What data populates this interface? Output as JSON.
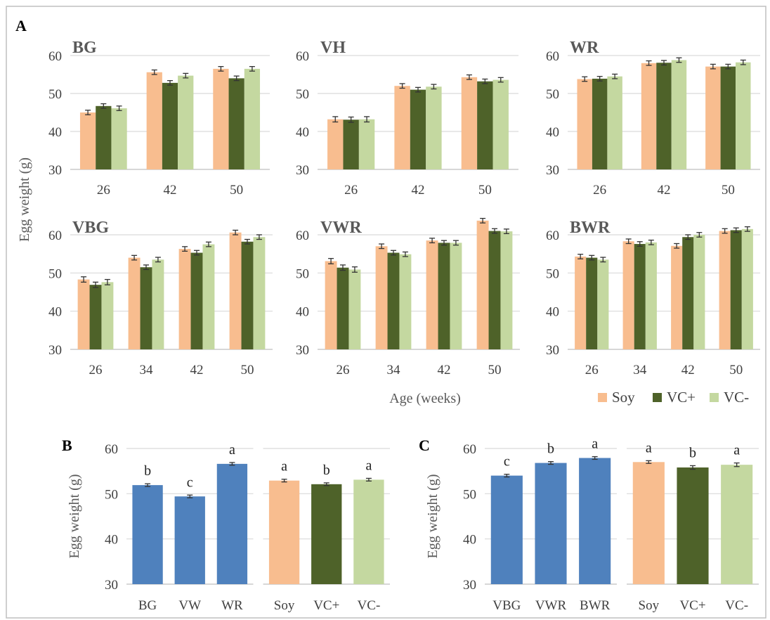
{
  "figure": {
    "panel_labels": [
      "A",
      "B",
      "C"
    ],
    "colors": {
      "Soy": "#F8BD8F",
      "VC+": "#4E6229",
      "VC-": "#C4D8A0",
      "strain": "#4F81BD",
      "grid": "#D9D9D9",
      "border": "#BFBFBF"
    },
    "panel_a": {
      "ylabel": "Egg weight (g)",
      "xlabel": "Age (weeks)",
      "legend": [
        "Soy",
        "VC+",
        "VC-"
      ]
    }
  },
  "chart_data": [
    {
      "type": "bar",
      "panel": "A",
      "title": "BG",
      "categories": [
        "26",
        "42",
        "50"
      ],
      "ylim": [
        30,
        60
      ],
      "yticks": [
        30,
        40,
        50,
        60
      ],
      "series": [
        {
          "name": "Soy",
          "values": [
            45.0,
            55.6,
            56.5
          ],
          "errors": [
            0.6,
            0.6,
            0.6
          ]
        },
        {
          "name": "VC+",
          "values": [
            46.7,
            52.8,
            54.0
          ],
          "errors": [
            0.6,
            0.6,
            0.6
          ]
        },
        {
          "name": "VC-",
          "values": [
            46.1,
            54.7,
            56.5
          ],
          "errors": [
            0.6,
            0.6,
            0.6
          ]
        }
      ]
    },
    {
      "type": "bar",
      "panel": "A",
      "title": "VH",
      "categories": [
        "26",
        "42",
        "50"
      ],
      "ylim": [
        30,
        60
      ],
      "yticks": [
        30,
        40,
        50,
        60
      ],
      "series": [
        {
          "name": "Soy",
          "values": [
            43.2,
            52.0,
            54.3
          ],
          "errors": [
            0.7,
            0.6,
            0.6
          ]
        },
        {
          "name": "VC+",
          "values": [
            43.1,
            51.0,
            53.2
          ],
          "errors": [
            0.7,
            0.6,
            0.6
          ]
        },
        {
          "name": "VC-",
          "values": [
            43.2,
            51.8,
            53.6
          ],
          "errors": [
            0.7,
            0.6,
            0.6
          ]
        }
      ]
    },
    {
      "type": "bar",
      "panel": "A",
      "title": "WR",
      "categories": [
        "26",
        "42",
        "50"
      ],
      "ylim": [
        30,
        60
      ],
      "yticks": [
        30,
        40,
        50,
        60
      ],
      "series": [
        {
          "name": "Soy",
          "values": [
            53.8,
            58.0,
            57.1
          ],
          "errors": [
            0.6,
            0.6,
            0.6
          ]
        },
        {
          "name": "VC+",
          "values": [
            53.9,
            58.1,
            57.1
          ],
          "errors": [
            0.6,
            0.6,
            0.6
          ]
        },
        {
          "name": "VC-",
          "values": [
            54.5,
            58.8,
            58.2
          ],
          "errors": [
            0.6,
            0.6,
            0.6
          ]
        }
      ]
    },
    {
      "type": "bar",
      "panel": "A",
      "title": "VBG",
      "categories": [
        "26",
        "34",
        "42",
        "50"
      ],
      "ylim": [
        30,
        60
      ],
      "yticks": [
        30,
        40,
        50,
        60
      ],
      "series": [
        {
          "name": "Soy",
          "values": [
            48.3,
            54.0,
            56.3,
            60.6
          ],
          "errors": [
            0.7,
            0.6,
            0.6,
            0.6
          ]
        },
        {
          "name": "VC+",
          "values": [
            46.9,
            51.5,
            55.3,
            58.2
          ],
          "errors": [
            0.7,
            0.6,
            0.6,
            0.6
          ]
        },
        {
          "name": "VC-",
          "values": [
            47.6,
            53.5,
            57.5,
            59.4
          ],
          "errors": [
            0.7,
            0.6,
            0.6,
            0.6
          ]
        }
      ]
    },
    {
      "type": "bar",
      "panel": "A",
      "title": "VWR",
      "categories": [
        "26",
        "34",
        "42",
        "50"
      ],
      "ylim": [
        30,
        60
      ],
      "yticks": [
        30,
        40,
        50,
        60
      ],
      "series": [
        {
          "name": "Soy",
          "values": [
            53.1,
            57.0,
            58.5,
            63.7
          ],
          "errors": [
            0.7,
            0.6,
            0.6,
            0.6
          ]
        },
        {
          "name": "VC+",
          "values": [
            51.4,
            55.3,
            57.9,
            61.0
          ],
          "errors": [
            0.7,
            0.6,
            0.6,
            0.6
          ]
        },
        {
          "name": "VC-",
          "values": [
            50.9,
            54.9,
            57.9,
            60.9
          ],
          "errors": [
            0.7,
            0.6,
            0.6,
            0.6
          ]
        }
      ]
    },
    {
      "type": "bar",
      "panel": "A",
      "title": "BWR",
      "categories": [
        "26",
        "34",
        "42",
        "50"
      ],
      "ylim": [
        30,
        60
      ],
      "yticks": [
        30,
        40,
        50,
        60
      ],
      "series": [
        {
          "name": "Soy",
          "values": [
            54.3,
            58.3,
            57.1,
            61.0
          ],
          "errors": [
            0.6,
            0.6,
            0.6,
            0.6
          ]
        },
        {
          "name": "VC+",
          "values": [
            54.0,
            57.6,
            59.4,
            61.2
          ],
          "errors": [
            0.6,
            0.6,
            0.6,
            0.6
          ]
        },
        {
          "name": "VC-",
          "values": [
            53.5,
            58.0,
            60.0,
            61.5
          ],
          "errors": [
            0.6,
            0.6,
            0.6,
            0.6
          ]
        }
      ]
    },
    {
      "type": "bar",
      "panel": "B",
      "ylabel": "Egg weight (g)",
      "categories": [
        "BG",
        "VW",
        "WR",
        "Soy",
        "VC+",
        "VC-"
      ],
      "values": [
        51.9,
        49.4,
        56.6,
        52.9,
        52.1,
        53.1
      ],
      "errors": [
        0.3,
        0.3,
        0.3,
        0.3,
        0.3,
        0.3
      ],
      "letters": [
        "b",
        "c",
        "a",
        "a",
        "b",
        "a"
      ],
      "ylim": [
        30,
        60
      ],
      "yticks": [
        30,
        40,
        50,
        60
      ]
    },
    {
      "type": "bar",
      "panel": "C",
      "ylabel": "Egg weight (g)",
      "categories": [
        "VBG",
        "VWR",
        "BWR",
        "Soy",
        "VC+",
        "VC-"
      ],
      "values": [
        54.0,
        56.8,
        57.9,
        57.0,
        55.8,
        56.4
      ],
      "errors": [
        0.3,
        0.3,
        0.3,
        0.3,
        0.4,
        0.4
      ],
      "letters": [
        "c",
        "b",
        "a",
        "a",
        "b",
        "a"
      ],
      "ylim": [
        30,
        60
      ],
      "yticks": [
        30,
        40,
        50,
        60
      ]
    }
  ]
}
